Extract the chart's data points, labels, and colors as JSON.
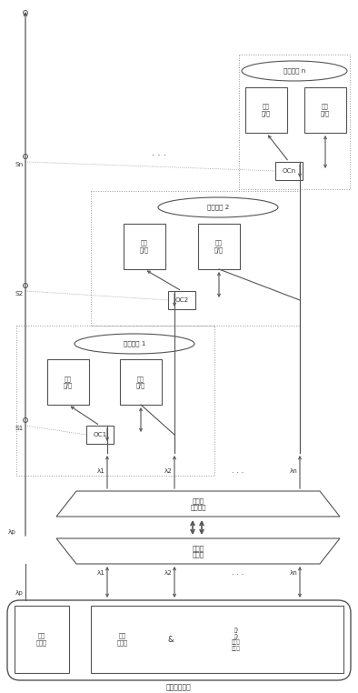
{
  "bg_color": "#ffffff",
  "fig_width": 3.94,
  "fig_height": 7.62,
  "dpi": 100,
  "lc": "#555555",
  "dlc": "#999999",
  "tc": "#333333",
  "fs": 5.2,
  "base_station_label": "监控本端中心",
  "energy_tx_label": "能量\n收发器",
  "signal_rx_label": "信号\n收发器",
  "and_label": "&",
  "wl_label": "光/\n电/\n光波长\n转换器",
  "mux_label": "波长分\n复用器",
  "demux_label": "波长分\n解复用器",
  "node1_label": "检测节点 1",
  "node2_label": "检测节点 2",
  "noden_label": "检测节点 n",
  "energy_oe_label": "能量\n光/电",
  "signal_oe_label": "信号\n光/电",
  "oc1_label": "OC1",
  "oc2_label": "OC2",
  "ocn_label": "OCn",
  "s1_label": "S1",
  "s2_label": "S2",
  "sn_label": "Sn",
  "lp_label": "λp",
  "l1_label": "λ1",
  "l2_label": "λ2",
  "ln_label": "λn",
  "dots": ". . ."
}
